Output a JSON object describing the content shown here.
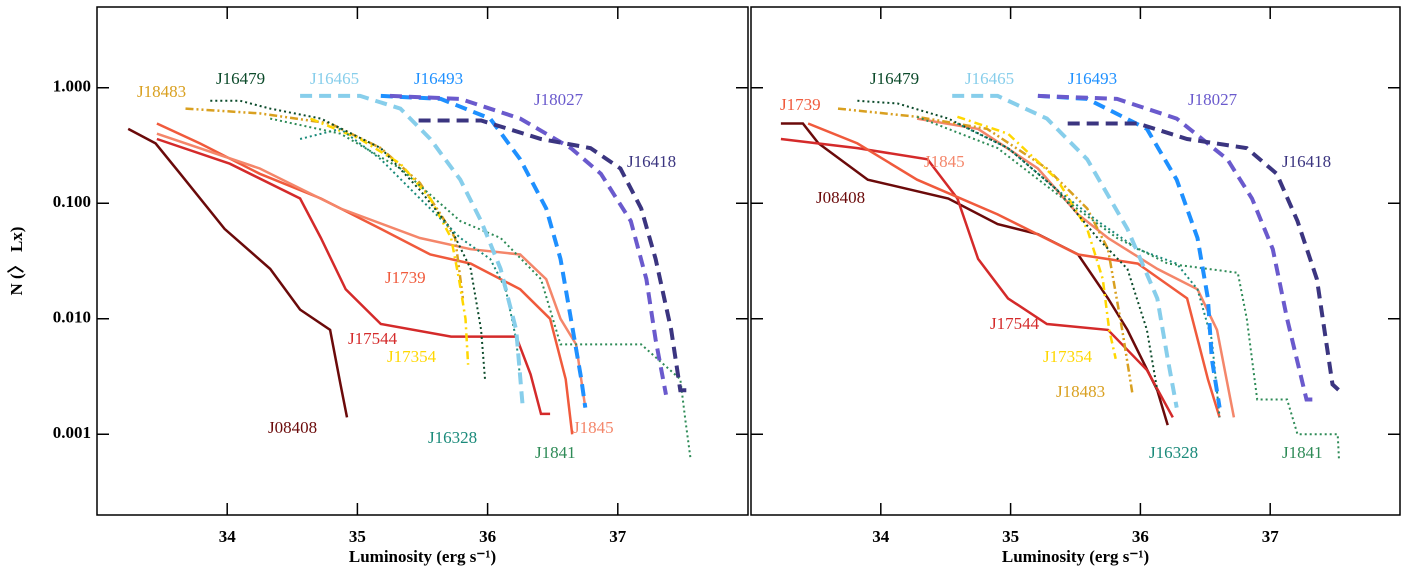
{
  "chart_data": [
    {
      "type": "line",
      "xlabel": "Luminosity (erg s⁻¹)",
      "ylabel": "N (〉 Lx)",
      "log_y": true,
      "xlim": [
        33,
        38
      ],
      "xticks": [
        34,
        35,
        36,
        37
      ],
      "ylim": [
        0.0002,
        5
      ],
      "yticks": [
        {
          "value": 0.001,
          "label": "0.001"
        },
        {
          "value": 0.01,
          "label": "0.010"
        },
        {
          "value": 0.1,
          "label": "0.100"
        },
        {
          "value": 1,
          "label": "1.000"
        }
      ],
      "series": [
        {
          "name": "J08408",
          "color": "#6b0a0a",
          "style": "solid",
          "x": [
            33.24,
            33.45,
            33.64,
            33.98,
            34.33,
            34.56,
            34.79,
            34.87,
            34.92
          ],
          "values": [
            0.44,
            0.33,
            0.18,
            0.06,
            0.027,
            0.012,
            0.008,
            0.0027,
            0.0014
          ]
        },
        {
          "name": "J17544",
          "color": "#d42a2a",
          "style": "solid",
          "x": [
            33.46,
            34.02,
            34.56,
            34.72,
            34.91,
            35.18,
            35.72,
            36.22,
            36.33,
            36.41,
            36.48
          ],
          "values": [
            0.36,
            0.22,
            0.11,
            0.05,
            0.018,
            0.009,
            0.007,
            0.007,
            0.0033,
            0.0015,
            0.0015
          ]
        },
        {
          "name": "J1739",
          "color": "#f05a3c",
          "style": "solid",
          "x": [
            33.46,
            33.79,
            34.25,
            34.72,
            35.18,
            35.56,
            35.87,
            36.25,
            36.48,
            36.6,
            36.65
          ],
          "values": [
            0.49,
            0.33,
            0.18,
            0.11,
            0.06,
            0.036,
            0.03,
            0.018,
            0.01,
            0.003,
            0.001
          ]
        },
        {
          "name": "J1845",
          "color": "#f4866a",
          "style": "solid",
          "x": [
            33.46,
            34.25,
            34.87,
            35.48,
            35.87,
            36.25,
            36.45,
            36.56,
            36.68,
            36.75
          ],
          "values": [
            0.4,
            0.2,
            0.09,
            0.05,
            0.04,
            0.036,
            0.022,
            0.01,
            0.006,
            0.0017
          ]
        },
        {
          "name": "J18483",
          "color": "#d9a020",
          "style": "dashdotdot",
          "x": [
            33.68,
            34.25,
            34.79,
            35.18,
            35.48,
            35.64,
            35.75,
            35.81
          ],
          "values": [
            0.66,
            0.6,
            0.49,
            0.3,
            0.15,
            0.08,
            0.05,
            0.015
          ]
        },
        {
          "name": "J17354",
          "color": "#ffd700",
          "style": "dashdot",
          "x": [
            34.64,
            35.02,
            35.33,
            35.56,
            35.72,
            35.78,
            35.83,
            35.85
          ],
          "values": [
            0.54,
            0.36,
            0.22,
            0.11,
            0.05,
            0.022,
            0.01,
            0.004
          ]
        },
        {
          "name": "J16479",
          "color": "#0b4a2a",
          "style": "dotted",
          "x": [
            33.87,
            34.1,
            34.33,
            34.72,
            35.18,
            35.48,
            35.72,
            35.87,
            35.95,
            35.98
          ],
          "values": [
            0.77,
            0.77,
            0.66,
            0.54,
            0.3,
            0.13,
            0.06,
            0.027,
            0.008,
            0.003
          ]
        },
        {
          "name": "J16328",
          "color": "#1a8a7a",
          "style": "dotted",
          "x": [
            34.56,
            34.87,
            35.18,
            35.48,
            35.79,
            36.02,
            36.14,
            36.22,
            36.25
          ],
          "values": [
            0.36,
            0.44,
            0.24,
            0.11,
            0.05,
            0.033,
            0.018,
            0.0066,
            0.003
          ]
        },
        {
          "name": "J1841",
          "color": "#2e8b57",
          "style": "dotted",
          "x": [
            34.33,
            34.87,
            35.33,
            35.79,
            36.1,
            36.41,
            36.56,
            37.18,
            37.48,
            37.52,
            37.56
          ],
          "values": [
            0.54,
            0.4,
            0.2,
            0.07,
            0.05,
            0.022,
            0.006,
            0.006,
            0.003,
            0.0013,
            0.0006
          ]
        },
        {
          "name": "J16465",
          "color": "#87ceeb",
          "style": "dashed",
          "x": [
            34.56,
            35.02,
            35.33,
            35.56,
            35.79,
            35.95,
            36.1,
            36.22,
            36.27
          ],
          "values": [
            0.85,
            0.85,
            0.66,
            0.36,
            0.16,
            0.07,
            0.027,
            0.008,
            0.0017
          ]
        },
        {
          "name": "J16493",
          "color": "#1e90ff",
          "style": "dashed",
          "x": [
            35.18,
            35.64,
            36.02,
            36.25,
            36.45,
            36.56,
            36.64,
            36.72,
            36.75
          ],
          "values": [
            0.85,
            0.8,
            0.54,
            0.24,
            0.09,
            0.033,
            0.01,
            0.003,
            0.0017
          ]
        },
        {
          "name": "J18027",
          "color": "#6a5acd",
          "style": "dashed",
          "x": [
            35.25,
            35.79,
            36.25,
            36.64,
            36.87,
            37.1,
            37.22,
            37.29,
            37.37
          ],
          "values": [
            0.85,
            0.8,
            0.54,
            0.3,
            0.18,
            0.07,
            0.022,
            0.0066,
            0.0022
          ]
        },
        {
          "name": "J16418",
          "color": "#3b3580",
          "style": "dashed",
          "x": [
            35.47,
            35.95,
            36.41,
            36.79,
            37.02,
            37.18,
            37.29,
            37.41,
            37.48,
            37.55
          ],
          "values": [
            0.52,
            0.52,
            0.36,
            0.3,
            0.2,
            0.09,
            0.033,
            0.008,
            0.0024,
            0.0024
          ]
        }
      ]
    },
    {
      "type": "line",
      "xlabel": "Luminosity (erg s⁻¹)",
      "log_y": true,
      "xlim": [
        33,
        38
      ],
      "xticks": [
        34,
        35,
        36,
        37
      ],
      "ylim": [
        0.0002,
        5
      ],
      "yticks": [
        0.001,
        0.01,
        0.1,
        1
      ],
      "series": [
        {
          "name": "J08408",
          "color": "#6b0a0a",
          "style": "solid",
          "x": [
            33.23,
            33.4,
            33.52,
            33.9,
            34.52,
            34.9,
            35.21,
            35.52,
            35.75,
            35.9,
            36.13,
            36.21
          ],
          "values": [
            0.49,
            0.49,
            0.33,
            0.16,
            0.11,
            0.066,
            0.054,
            0.036,
            0.015,
            0.008,
            0.0024,
            0.0012
          ]
        },
        {
          "name": "J17544",
          "color": "#d42a2a",
          "style": "solid",
          "x": [
            33.23,
            33.82,
            34.36,
            34.59,
            34.75,
            34.98,
            35.28,
            35.75,
            36.05,
            36.25
          ],
          "values": [
            0.36,
            0.3,
            0.24,
            0.11,
            0.033,
            0.015,
            0.009,
            0.008,
            0.0036,
            0.0014
          ]
        },
        {
          "name": "J1739",
          "color": "#f05a3c",
          "style": "solid",
          "x": [
            33.44,
            33.82,
            34.28,
            34.9,
            35.52,
            35.98,
            36.36,
            36.52,
            36.61
          ],
          "values": [
            0.49,
            0.33,
            0.16,
            0.08,
            0.036,
            0.03,
            0.015,
            0.003,
            0.0014
          ]
        },
        {
          "name": "J1845",
          "color": "#f4866a",
          "style": "solid",
          "x": [
            34.28,
            34.75,
            35.21,
            35.52,
            35.75,
            36.13,
            36.44,
            36.59,
            36.72
          ],
          "values": [
            0.54,
            0.44,
            0.2,
            0.08,
            0.05,
            0.027,
            0.018,
            0.008,
            0.0014
          ]
        },
        {
          "name": "J18483",
          "color": "#d9a020",
          "style": "dashdotdot",
          "x": [
            33.67,
            34.28,
            34.82,
            35.28,
            35.59,
            35.75,
            35.86,
            35.94
          ],
          "values": [
            0.66,
            0.56,
            0.44,
            0.2,
            0.09,
            0.04,
            0.008,
            0.0022
          ]
        },
        {
          "name": "J17354",
          "color": "#ffd700",
          "style": "dashdot",
          "x": [
            34.59,
            34.98,
            35.36,
            35.59,
            35.71,
            35.76,
            35.81
          ],
          "values": [
            0.56,
            0.4,
            0.16,
            0.06,
            0.022,
            0.008,
            0.0045
          ]
        },
        {
          "name": "J16479",
          "color": "#0b4a2a",
          "style": "dotted",
          "x": [
            33.82,
            34.13,
            34.52,
            34.98,
            35.36,
            35.67,
            35.9,
            36.05,
            36.13
          ],
          "values": [
            0.77,
            0.73,
            0.54,
            0.3,
            0.13,
            0.05,
            0.027,
            0.008,
            0.0024
          ]
        },
        {
          "name": "J16328",
          "color": "#1a8a7a",
          "style": "dotted",
          "x": [
            34.59,
            34.98,
            35.36,
            35.67,
            35.98,
            36.28,
            36.44,
            36.55,
            36.61
          ],
          "values": [
            0.49,
            0.3,
            0.13,
            0.07,
            0.04,
            0.03,
            0.018,
            0.0066,
            0.0014
          ]
        },
        {
          "name": "J1841",
          "color": "#2e8b57",
          "style": "dotted",
          "x": [
            34.28,
            34.9,
            35.36,
            35.82,
            36.21,
            36.75,
            36.82,
            36.9,
            37.13,
            37.21,
            37.52,
            37.53
          ],
          "values": [
            0.56,
            0.3,
            0.12,
            0.05,
            0.03,
            0.025,
            0.01,
            0.002,
            0.002,
            0.001,
            0.001,
            0.0006
          ]
        },
        {
          "name": "J16465",
          "color": "#87ceeb",
          "style": "dashed",
          "x": [
            34.55,
            34.9,
            35.28,
            35.59,
            35.9,
            36.13,
            36.21,
            36.28
          ],
          "values": [
            0.85,
            0.85,
            0.54,
            0.24,
            0.06,
            0.015,
            0.0045,
            0.0017
          ]
        },
        {
          "name": "J16493",
          "color": "#1e90ff",
          "style": "dashed",
          "x": [
            35.21,
            35.59,
            36.05,
            36.28,
            36.44,
            36.52,
            36.55,
            36.61
          ],
          "values": [
            0.85,
            0.8,
            0.44,
            0.16,
            0.05,
            0.015,
            0.0045,
            0.0017
          ]
        },
        {
          "name": "J18027",
          "color": "#6a5acd",
          "style": "dashed",
          "x": [
            35.21,
            35.82,
            36.28,
            36.67,
            36.86,
            37.02,
            37.13,
            37.28,
            37.36
          ],
          "values": [
            0.85,
            0.8,
            0.54,
            0.24,
            0.11,
            0.04,
            0.01,
            0.002,
            0.002
          ]
        },
        {
          "name": "J16418",
          "color": "#3b3580",
          "style": "dashed",
          "x": [
            35.44,
            35.98,
            36.36,
            36.82,
            37.05,
            37.21,
            37.36,
            37.48,
            37.53
          ],
          "values": [
            0.49,
            0.49,
            0.36,
            0.3,
            0.18,
            0.07,
            0.022,
            0.0027,
            0.0024
          ]
        }
      ]
    }
  ]
}
